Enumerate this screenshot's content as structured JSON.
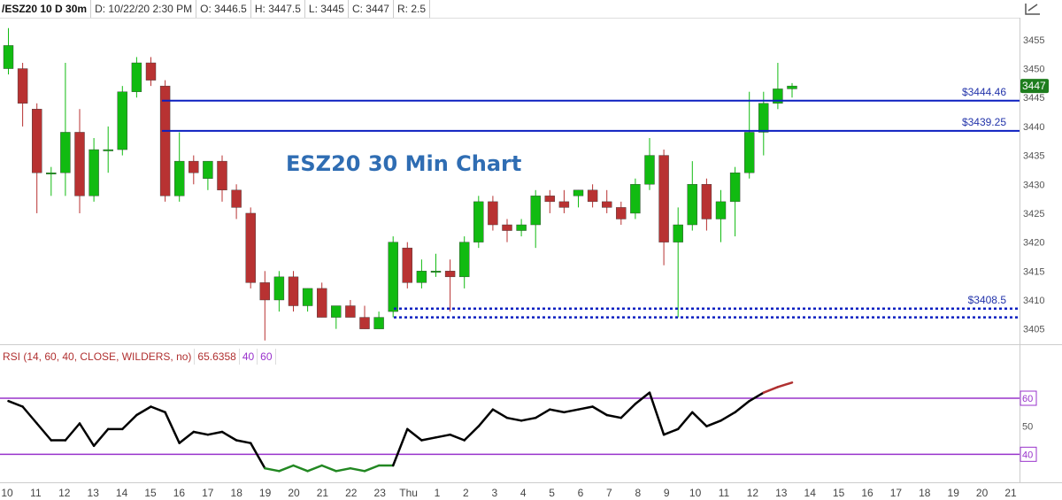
{
  "header": {
    "symbol": "/ESZ20 10 D 30m",
    "date": "D: 10/22/20 2:30 PM",
    "open": "O: 3446.5",
    "high": "H: 3447.5",
    "low": "L: 3445",
    "close": "C: 3447",
    "range": "R: 2.5"
  },
  "toolbar": {
    "draw_icon": "draw-tool-icon"
  },
  "colors": {
    "up": "#11bb11",
    "down": "#b83232",
    "level_line": "#0b1fc0",
    "rsi_level": "#9933cc",
    "rsi_normal": "#000000",
    "rsi_oversold": "#228822",
    "rsi_overbought": "#b03030",
    "last_price_tag": "#1e7d1e"
  },
  "chart_data": [
    {
      "type": "candlestick",
      "title": "ESZ20 30 Min Chart",
      "ylim": [
        3402.5,
        3458.5
      ],
      "y_ticks": [
        3405,
        3410,
        3415,
        3420,
        3425,
        3430,
        3435,
        3440,
        3445,
        3450,
        3455
      ],
      "x_ticks": [
        "10",
        "11",
        "12",
        "13",
        "14",
        "15",
        "16",
        "17",
        "18",
        "19",
        "20",
        "21",
        "22",
        "23",
        "Thu",
        "1",
        "2",
        "3",
        "4",
        "5",
        "6",
        "7",
        "8",
        "9",
        "10",
        "11",
        "12",
        "13",
        "14",
        "15",
        "16",
        "17",
        "18",
        "19",
        "20",
        "21"
      ],
      "last_price": "3447",
      "candles": [
        {
          "o": 3450,
          "h": 3457,
          "l": 3449,
          "c": 3454
        },
        {
          "o": 3450,
          "h": 3451,
          "l": 3440,
          "c": 3444
        },
        {
          "o": 3443,
          "h": 3444,
          "l": 3425,
          "c": 3432
        },
        {
          "o": 3432,
          "h": 3433,
          "l": 3428,
          "c": 3432
        },
        {
          "o": 3432,
          "h": 3451,
          "l": 3428,
          "c": 3439
        },
        {
          "o": 3439,
          "h": 3443,
          "l": 3425,
          "c": 3428
        },
        {
          "o": 3428,
          "h": 3438,
          "l": 3427,
          "c": 3436
        },
        {
          "o": 3436,
          "h": 3440,
          "l": 3432,
          "c": 3436
        },
        {
          "o": 3436,
          "h": 3447,
          "l": 3435,
          "c": 3446
        },
        {
          "o": 3446,
          "h": 3452,
          "l": 3445,
          "c": 3451
        },
        {
          "o": 3451,
          "h": 3452,
          "l": 3447,
          "c": 3448
        },
        {
          "o": 3447,
          "h": 3448,
          "l": 3427,
          "c": 3428
        },
        {
          "o": 3428,
          "h": 3439,
          "l": 3427,
          "c": 3434
        },
        {
          "o": 3434,
          "h": 3435,
          "l": 3430,
          "c": 3432
        },
        {
          "o": 3431,
          "h": 3434,
          "l": 3429,
          "c": 3434
        },
        {
          "o": 3434,
          "h": 3435,
          "l": 3427,
          "c": 3429
        },
        {
          "o": 3429,
          "h": 3430,
          "l": 3424,
          "c": 3426
        },
        {
          "o": 3425,
          "h": 3426,
          "l": 3412,
          "c": 3413
        },
        {
          "o": 3413,
          "h": 3415,
          "l": 3403,
          "c": 3410
        },
        {
          "o": 3410,
          "h": 3415,
          "l": 3408,
          "c": 3414
        },
        {
          "o": 3414,
          "h": 3415,
          "l": 3408,
          "c": 3409
        },
        {
          "o": 3409,
          "h": 3412,
          "l": 3408,
          "c": 3412
        },
        {
          "o": 3412,
          "h": 3413,
          "l": 3407,
          "c": 3407
        },
        {
          "o": 3407,
          "h": 3409,
          "l": 3405,
          "c": 3409
        },
        {
          "o": 3409,
          "h": 3410,
          "l": 3407,
          "c": 3407
        },
        {
          "o": 3407,
          "h": 3409,
          "l": 3405,
          "c": 3405
        },
        {
          "o": 3405,
          "h": 3408,
          "l": 3405,
          "c": 3407
        },
        {
          "o": 3408,
          "h": 3421,
          "l": 3407,
          "c": 3420
        },
        {
          "o": 3419,
          "h": 3420,
          "l": 3412,
          "c": 3413
        },
        {
          "o": 3413,
          "h": 3417,
          "l": 3412,
          "c": 3415
        },
        {
          "o": 3415,
          "h": 3418,
          "l": 3414,
          "c": 3415
        },
        {
          "o": 3415,
          "h": 3417,
          "l": 3408,
          "c": 3414
        },
        {
          "o": 3414,
          "h": 3421,
          "l": 3412,
          "c": 3420
        },
        {
          "o": 3420,
          "h": 3428,
          "l": 3419,
          "c": 3427
        },
        {
          "o": 3427,
          "h": 3428,
          "l": 3422,
          "c": 3423
        },
        {
          "o": 3423,
          "h": 3424,
          "l": 3420,
          "c": 3422
        },
        {
          "o": 3422,
          "h": 3424,
          "l": 3421,
          "c": 3423
        },
        {
          "o": 3423,
          "h": 3429,
          "l": 3419,
          "c": 3428
        },
        {
          "o": 3428,
          "h": 3429,
          "l": 3425,
          "c": 3427
        },
        {
          "o": 3427,
          "h": 3429,
          "l": 3425,
          "c": 3426
        },
        {
          "o": 3428,
          "h": 3429,
          "l": 3426,
          "c": 3429
        },
        {
          "o": 3429,
          "h": 3430,
          "l": 3426,
          "c": 3427
        },
        {
          "o": 3427,
          "h": 3429,
          "l": 3425,
          "c": 3426
        },
        {
          "o": 3426,
          "h": 3427,
          "l": 3423,
          "c": 3424
        },
        {
          "o": 3425,
          "h": 3431,
          "l": 3424,
          "c": 3430
        },
        {
          "o": 3430,
          "h": 3438,
          "l": 3429,
          "c": 3435
        },
        {
          "o": 3435,
          "h": 3436,
          "l": 3416,
          "c": 3420
        },
        {
          "o": 3420,
          "h": 3426,
          "l": 3407,
          "c": 3423
        },
        {
          "o": 3423,
          "h": 3434,
          "l": 3422,
          "c": 3430
        },
        {
          "o": 3430,
          "h": 3431,
          "l": 3422,
          "c": 3424
        },
        {
          "o": 3424,
          "h": 3429,
          "l": 3420,
          "c": 3427
        },
        {
          "o": 3427,
          "h": 3433,
          "l": 3421,
          "c": 3432
        },
        {
          "o": 3432,
          "h": 3446,
          "l": 3431,
          "c": 3439
        },
        {
          "o": 3439,
          "h": 3446,
          "l": 3435,
          "c": 3444
        },
        {
          "o": 3444,
          "h": 3451,
          "l": 3443,
          "c": 3446.5
        },
        {
          "o": 3446.5,
          "h": 3447.5,
          "l": 3445,
          "c": 3447
        }
      ],
      "levels": [
        {
          "price": 3444.46,
          "label": "$3444.46",
          "style": "solid"
        },
        {
          "price": 3439.25,
          "label": "$3439.25",
          "style": "solid"
        },
        {
          "price": 3408.5,
          "label": "$3408.5",
          "style": "dotted"
        },
        {
          "price": 3407,
          "label": "",
          "style": "dotted"
        }
      ]
    },
    {
      "type": "line",
      "title": "RSI (14, 60, 40, CLOSE, WILDERS, no)",
      "value": "65.6358",
      "lower_level": "40",
      "upper_level": "60",
      "ylim": [
        30,
        72
      ],
      "y_ticks": [
        "60",
        "50",
        "40"
      ],
      "values": [
        59,
        57,
        51,
        45,
        45,
        51,
        43,
        49,
        49,
        54,
        57,
        55,
        44,
        48,
        47,
        48,
        45,
        44,
        35,
        34,
        36,
        34,
        36,
        34,
        35,
        34,
        36,
        36,
        49,
        45,
        46,
        47,
        45,
        50,
        56,
        53,
        52,
        53,
        56,
        55,
        56,
        57,
        54,
        53,
        58,
        62,
        47,
        49,
        55,
        50,
        52,
        55,
        59,
        62,
        64,
        65.6
      ]
    }
  ]
}
